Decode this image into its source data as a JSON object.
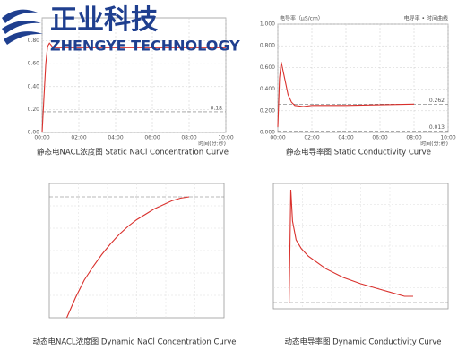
{
  "logo": {
    "name": "正业科技",
    "subtitle": "ZHENGYE TECHNOLOGY"
  },
  "chart_data": [
    {
      "type": "line",
      "title": "静态电NACL浓度图  Static NaCl Concentration Curve",
      "x_label": "时间(分:秒)",
      "xlim": [
        0,
        10
      ],
      "ylim": [
        0,
        1
      ],
      "xticks": [
        {
          "value": 0,
          "label": "00:00"
        },
        {
          "value": 2,
          "label": "02:00"
        },
        {
          "value": 4,
          "label": "04:00"
        },
        {
          "value": 6,
          "label": "06:00"
        },
        {
          "value": 8,
          "label": "08:00"
        },
        {
          "value": 10,
          "label": "10:00"
        }
      ],
      "yticks": [
        {
          "value": 0,
          "label": "0.00"
        },
        {
          "value": 0.2,
          "label": "0.20"
        },
        {
          "value": 0.4,
          "label": "0.40"
        },
        {
          "value": 0.6,
          "label": "0.60"
        },
        {
          "value": 0.8,
          "label": "0.80"
        }
      ],
      "grid": true,
      "series": [
        {
          "color": "#d9302c",
          "x": [
            0,
            0.1,
            0.2,
            0.3,
            0.4,
            0.6,
            1,
            2,
            4,
            6,
            8,
            10
          ],
          "values": [
            0,
            0.3,
            0.6,
            0.75,
            0.78,
            0.74,
            0.74,
            0.74,
            0.74,
            0.74,
            0.74,
            0.74
          ]
        }
      ],
      "references": [
        {
          "value": 0.18
        }
      ]
    },
    {
      "type": "line",
      "title": "静态电导率图  Static Conductivity Curve",
      "x_label": "时间(分:秒)",
      "y_label": "电导率（μS/cm）",
      "legend": "电导率 • 时间曲线",
      "xlim": [
        0,
        10
      ],
      "ylim": [
        0,
        1
      ],
      "xticks": [
        {
          "value": 0,
          "label": "00:00"
        },
        {
          "value": 2,
          "label": "02:00"
        },
        {
          "value": 4,
          "label": "04:00"
        },
        {
          "value": 6,
          "label": "06:00"
        },
        {
          "value": 8,
          "label": "08:00"
        },
        {
          "value": 10,
          "label": "10:00"
        }
      ],
      "yticks": [
        {
          "value": 0,
          "label": "0.000"
        },
        {
          "value": 0.2,
          "label": "0.200"
        },
        {
          "value": 0.4,
          "label": "0.400"
        },
        {
          "value": 0.6,
          "label": "0.600"
        },
        {
          "value": 0.8,
          "label": "0.800"
        },
        {
          "value": 1,
          "label": "1.000"
        }
      ],
      "grid": true,
      "series": [
        {
          "color": "#d9302c",
          "x": [
            0,
            0.1,
            0.2,
            0.4,
            0.6,
            0.8,
            1,
            1.5,
            2,
            4,
            6,
            8
          ],
          "values": [
            0.05,
            0.5,
            0.65,
            0.5,
            0.35,
            0.28,
            0.25,
            0.24,
            0.25,
            0.25,
            0.255,
            0.262
          ]
        }
      ],
      "references": [
        {
          "value": 0.262
        },
        {
          "value": 0.013
        }
      ]
    },
    {
      "type": "line",
      "title": "动态电NACL浓度图 Dynamic NaCl Concentration Curve",
      "xlim": [
        0,
        10
      ],
      "ylim": [
        0,
        1
      ],
      "grid": true,
      "series": [
        {
          "color": "#d9302c",
          "x": [
            1,
            1.5,
            2,
            2.5,
            3,
            3.5,
            4,
            4.5,
            5,
            5.5,
            6,
            6.5,
            7,
            7.5,
            8
          ],
          "values": [
            0,
            0.15,
            0.28,
            0.38,
            0.47,
            0.55,
            0.62,
            0.68,
            0.73,
            0.77,
            0.81,
            0.84,
            0.87,
            0.89,
            0.9
          ]
        }
      ],
      "references": [
        {
          "value": 0.9
        }
      ]
    },
    {
      "type": "line",
      "title": "动态电导率图 Dynamic Conductivity Curve",
      "xlim": [
        0,
        10
      ],
      "ylim": [
        0,
        1
      ],
      "grid": true,
      "series": [
        {
          "color": "#d9302c",
          "x": [
            0.9,
            1.0,
            1.1,
            1.3,
            1.6,
            2,
            3,
            4,
            5,
            6,
            7,
            7.5,
            8
          ],
          "values": [
            0.05,
            0.95,
            0.7,
            0.55,
            0.48,
            0.42,
            0.32,
            0.25,
            0.2,
            0.16,
            0.12,
            0.1,
            0.1
          ]
        }
      ],
      "references": [
        {
          "value": 0.05
        }
      ]
    }
  ]
}
